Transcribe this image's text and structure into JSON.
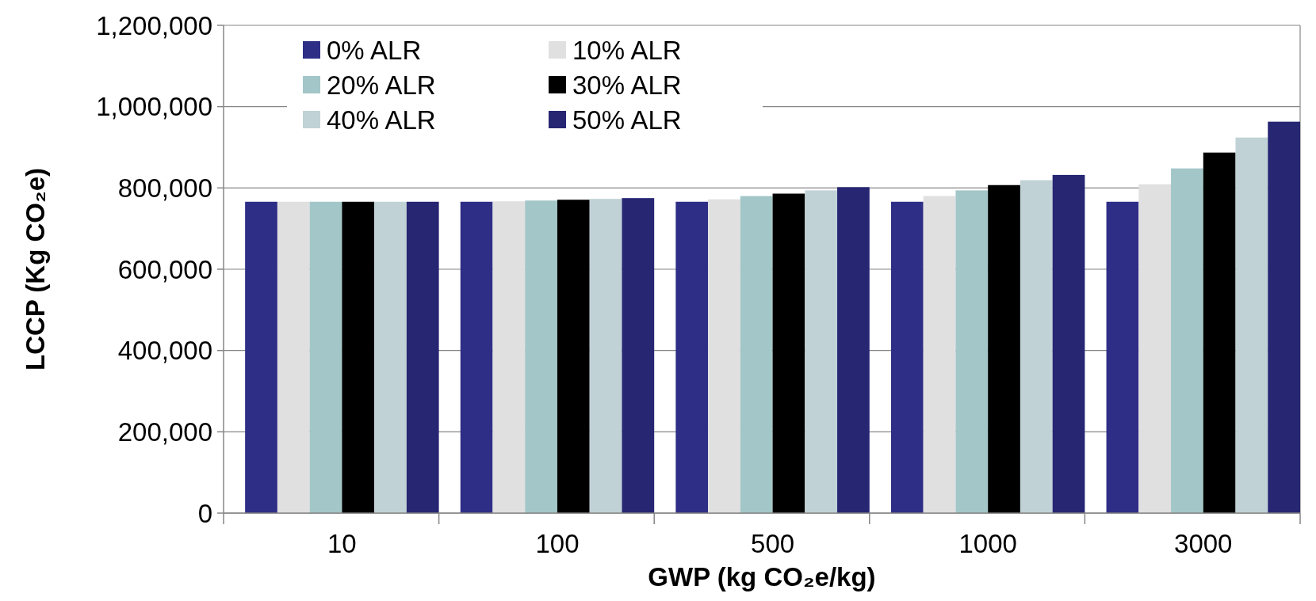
{
  "chart_data": {
    "type": "bar",
    "xlabel": "GWP (kg CO₂e/kg)",
    "ylabel": "LCCP (Kg CO₂e)",
    "categories": [
      "10",
      "100",
      "500",
      "1000",
      "3000"
    ],
    "series": [
      {
        "name": "0% ALR",
        "color": "#2e2e87",
        "values": [
          766000,
          766000,
          766000,
          766000,
          766000
        ]
      },
      {
        "name": "10% ALR",
        "color": "#e0e0e0",
        "values": [
          766000,
          767000,
          772000,
          780000,
          809000
        ]
      },
      {
        "name": "20% ALR",
        "color": "#a3c6c8",
        "values": [
          766000,
          769000,
          780000,
          794000,
          848000
        ]
      },
      {
        "name": "30% ALR",
        "color": "#000000",
        "values": [
          766000,
          771000,
          786000,
          807000,
          887000
        ]
      },
      {
        "name": "40% ALR",
        "color": "#c0d2d6",
        "values": [
          766000,
          773000,
          794000,
          819000,
          924000
        ]
      },
      {
        "name": "50% ALR",
        "color": "#262673",
        "values": [
          766000,
          775000,
          802000,
          832000,
          963000
        ]
      }
    ],
    "ylim": [
      0,
      1200000
    ],
    "yticks": [
      {
        "value": 0,
        "label": "0"
      },
      {
        "value": 200000,
        "label": "200,000"
      },
      {
        "value": 400000,
        "label": "400,000"
      },
      {
        "value": 600000,
        "label": "600,000"
      },
      {
        "value": 800000,
        "label": "800,000"
      },
      {
        "value": 1000000,
        "label": "1,000,000"
      },
      {
        "value": 1200000,
        "label": "1,200,000"
      }
    ],
    "grid": "y",
    "legend": "top left"
  }
}
